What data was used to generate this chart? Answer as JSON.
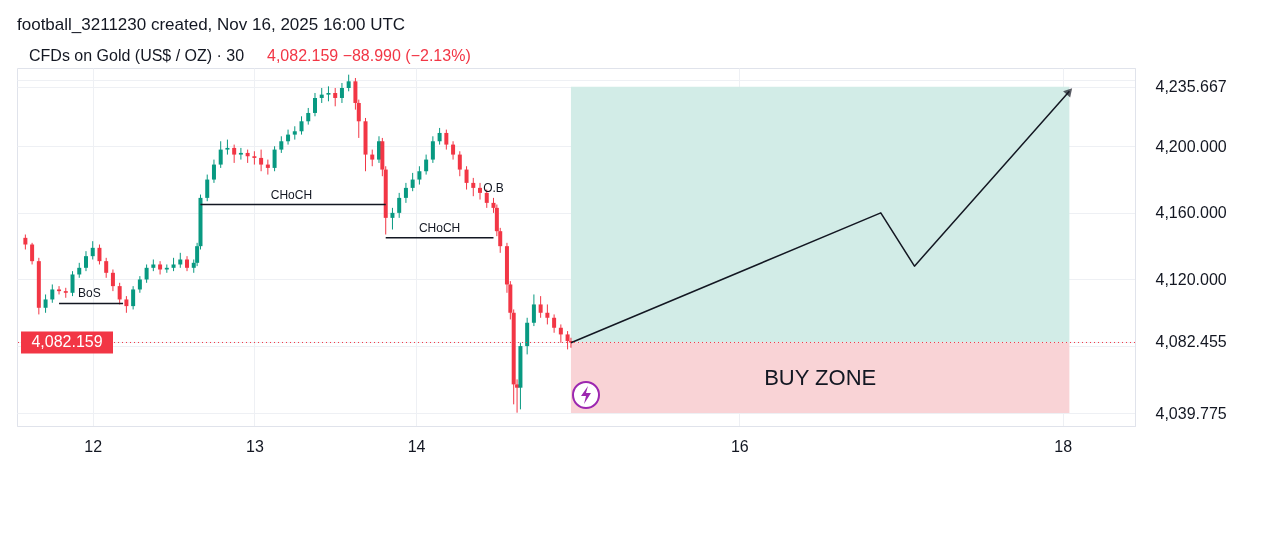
{
  "chart_data": {
    "type": "candlestick",
    "title": "football_3211230 created, Nov 16, 2025 16:00 UTC",
    "subtitle": "CFDs on Gold (US$ / OZ) · 30",
    "annotations": [
      "4,082.159 −88.990 (−2.13%)",
      {
        "text": "BoS",
        "x": "2025-11-11T23:30",
        "y": 4105.6
      },
      {
        "text": "CHoCH",
        "x": "2025-11-13T05:30",
        "y": 4165
      },
      {
        "text": "CHoCH",
        "x": "2025-11-14T03:30",
        "y": 4145
      },
      {
        "text": "O.B",
        "x": "2025-11-14T11:30",
        "y": 4169
      }
    ],
    "x": [
      "2025-11-11T14:00",
      "2025-11-11T15:00",
      "2025-11-11T16:00",
      "2025-11-11T17:00",
      "2025-11-11T18:00",
      "2025-11-11T19:00",
      "2025-11-11T20:00",
      "2025-11-11T21:00",
      "2025-11-11T22:00",
      "2025-11-11T23:00",
      "2025-11-12T00:00",
      "2025-11-12T01:00",
      "2025-11-12T02:00",
      "2025-11-12T03:00",
      "2025-11-12T04:00",
      "2025-11-12T05:00",
      "2025-11-12T06:00",
      "2025-11-12T07:00",
      "2025-11-12T08:00",
      "2025-11-12T09:00",
      "2025-11-12T10:00",
      "2025-11-12T11:00",
      "2025-11-12T12:00",
      "2025-11-12T13:00",
      "2025-11-12T14:00",
      "2025-11-12T15:00",
      "2025-11-12T15:30",
      "2025-11-12T16:00",
      "2025-11-12T17:00",
      "2025-11-12T18:00",
      "2025-11-12T19:00",
      "2025-11-12T20:00",
      "2025-11-12T21:00",
      "2025-11-12T22:00",
      "2025-11-12T23:00",
      "2025-11-13T00:00",
      "2025-11-13T01:00",
      "2025-11-13T02:00",
      "2025-11-13T03:00",
      "2025-11-13T04:00",
      "2025-11-13T05:00",
      "2025-11-13T06:00",
      "2025-11-13T07:00",
      "2025-11-13T08:00",
      "2025-11-13T09:00",
      "2025-11-13T10:00",
      "2025-11-13T11:00",
      "2025-11-13T12:00",
      "2025-11-13T13:00",
      "2025-11-13T14:00",
      "2025-11-13T15:00",
      "2025-11-13T15:30",
      "2025-11-13T16:30",
      "2025-11-13T17:30",
      "2025-11-13T18:30",
      "2025-11-13T19:00",
      "2025-11-13T19:30",
      "2025-11-13T20:30",
      "2025-11-13T21:30",
      "2025-11-13T22:30",
      "2025-11-13T23:30",
      "2025-11-14T00:30",
      "2025-11-14T01:30",
      "2025-11-14T02:30",
      "2025-11-14T03:30",
      "2025-11-14T04:30",
      "2025-11-14T05:30",
      "2025-11-14T06:30",
      "2025-11-14T07:30",
      "2025-11-14T08:30",
      "2025-11-14T09:30",
      "2025-11-14T10:30",
      "2025-11-14T11:30",
      "2025-11-14T12:00",
      "2025-11-14T12:30",
      "2025-11-14T13:30",
      "2025-11-14T14:00",
      "2025-11-14T14:30",
      "2025-11-14T15:00",
      "2025-11-14T15:30",
      "2025-11-14T16:30",
      "2025-11-14T17:30",
      "2025-11-14T18:30",
      "2025-11-14T19:30",
      "2025-11-14T20:30",
      "2025-11-14T21:30",
      "2025-11-14T22:30",
      "2025-11-14T23:00"
    ],
    "ohlc": [
      [
        4145,
        4147,
        4138,
        4141
      ],
      [
        4141,
        4142,
        4129,
        4131
      ],
      [
        4131,
        4133,
        4099,
        4103
      ],
      [
        4103,
        4111,
        4100,
        4108
      ],
      [
        4108,
        4117,
        4106,
        4114
      ],
      [
        4114,
        4116,
        4111,
        4113
      ],
      [
        4113,
        4115,
        4109,
        4112
      ],
      [
        4112,
        4125,
        4110,
        4123
      ],
      [
        4123,
        4130,
        4121,
        4127
      ],
      [
        4127,
        4137,
        4125,
        4134
      ],
      [
        4134,
        4143,
        4132,
        4139
      ],
      [
        4139,
        4141,
        4129,
        4131
      ],
      [
        4131,
        4133,
        4121,
        4124
      ],
      [
        4124,
        4126,
        4113,
        4116
      ],
      [
        4116,
        4118,
        4105,
        4108
      ],
      [
        4108,
        4110,
        4100,
        4104
      ],
      [
        4104,
        4116,
        4102,
        4114
      ],
      [
        4114,
        4122,
        4112,
        4120
      ],
      [
        4120,
        4129,
        4118,
        4127
      ],
      [
        4127,
        4132,
        4125,
        4129
      ],
      [
        4129,
        4131,
        4123,
        4126
      ],
      [
        4126,
        4129,
        4124,
        4127
      ],
      [
        4127,
        4133,
        4125,
        4129
      ],
      [
        4129,
        4136,
        4127,
        4132
      ],
      [
        4132,
        4134,
        4125,
        4127
      ],
      [
        4127,
        4132,
        4124,
        4130
      ],
      [
        4130,
        4142,
        4128,
        4140
      ],
      [
        4140,
        4171,
        4138,
        4169
      ],
      [
        4169,
        4183,
        4167,
        4180
      ],
      [
        4180,
        4192,
        4178,
        4189
      ],
      [
        4189,
        4203,
        4187,
        4198
      ],
      [
        4198,
        4204,
        4195,
        4199
      ],
      [
        4199,
        4201,
        4190,
        4195
      ],
      [
        4195,
        4199,
        4192,
        4196
      ],
      [
        4196,
        4198,
        4190,
        4194
      ],
      [
        4194,
        4197,
        4189,
        4193
      ],
      [
        4193,
        4198,
        4185,
        4189
      ],
      [
        4189,
        4192,
        4183,
        4187
      ],
      [
        4187,
        4200,
        4185,
        4198
      ],
      [
        4198,
        4206,
        4196,
        4203
      ],
      [
        4203,
        4210,
        4201,
        4207
      ],
      [
        4207,
        4212,
        4204,
        4209
      ],
      [
        4209,
        4218,
        4207,
        4215
      ],
      [
        4215,
        4223,
        4213,
        4220
      ],
      [
        4220,
        4232,
        4218,
        4229
      ],
      [
        4229,
        4235,
        4226,
        4231
      ],
      [
        4231,
        4236,
        4227,
        4232
      ],
      [
        4232,
        4235,
        4224,
        4229
      ],
      [
        4229,
        4238,
        4226,
        4235
      ],
      [
        4235,
        4243,
        4233,
        4239
      ],
      [
        4239,
        4241,
        4222,
        4226
      ],
      [
        4226,
        4228,
        4205,
        4215
      ],
      [
        4215,
        4217,
        4185,
        4195
      ],
      [
        4195,
        4198,
        4188,
        4192
      ],
      [
        4192,
        4206,
        4190,
        4203
      ],
      [
        4203,
        4205,
        4182,
        4186
      ],
      [
        4186,
        4188,
        4147,
        4157
      ],
      [
        4157,
        4163,
        4150,
        4160
      ],
      [
        4160,
        4172,
        4157,
        4169
      ],
      [
        4169,
        4178,
        4166,
        4175
      ],
      [
        4175,
        4184,
        4173,
        4180
      ],
      [
        4180,
        4188,
        4177,
        4185
      ],
      [
        4185,
        4195,
        4183,
        4192
      ],
      [
        4192,
        4206,
        4190,
        4203
      ],
      [
        4203,
        4211,
        4201,
        4208
      ],
      [
        4208,
        4210,
        4198,
        4201
      ],
      [
        4201,
        4203,
        4192,
        4195
      ],
      [
        4195,
        4197,
        4182,
        4186
      ],
      [
        4186,
        4188,
        4174,
        4178
      ],
      [
        4178,
        4181,
        4170,
        4175
      ],
      [
        4175,
        4178,
        4168,
        4172
      ],
      [
        4172,
        4174,
        4163,
        4166
      ],
      [
        4166,
        4169,
        4160,
        4163
      ],
      [
        4163,
        4165,
        4146,
        4149
      ],
      [
        4149,
        4151,
        4136,
        4140
      ],
      [
        4140,
        4142,
        4112,
        4117
      ],
      [
        4117,
        4119,
        4096,
        4100
      ],
      [
        4100,
        4102,
        4045,
        4057
      ],
      [
        4057,
        4060,
        4040,
        4055
      ],
      [
        4055,
        4082,
        4042,
        4080
      ],
      [
        4080,
        4097,
        4075,
        4094
      ],
      [
        4094,
        4111,
        4092,
        4105
      ],
      [
        4105,
        4110,
        4097,
        4100
      ],
      [
        4100,
        4105,
        4093,
        4097
      ],
      [
        4097,
        4099,
        4088,
        4091
      ],
      [
        4091,
        4093,
        4082,
        4087
      ],
      [
        4087,
        4089,
        4078,
        4083
      ],
      [
        4083,
        4085,
        4079,
        4082.159
      ]
    ],
    "series": [
      {
        "type": "line",
        "color": "#131722",
        "x": [
          "2025-11-14T23:00",
          "2025-11-16T21:00",
          "2025-11-17T02:00",
          "2025-11-18T01:00"
        ],
        "values": [
          4082,
          4160,
          4128,
          4233
        ]
      },
      {
        "type": "line",
        "color": "#131722",
        "x": [
          "2025-11-11T19:00",
          "2025-11-12T04:30"
        ],
        "values": [
          4105.6,
          4105.6
        ]
      },
      {
        "type": "line",
        "color": "#131722",
        "x": [
          "2025-11-12T16:00",
          "2025-11-13T19:30"
        ],
        "values": [
          4165,
          4165
        ]
      },
      {
        "type": "line",
        "color": "#131722",
        "x": [
          "2025-11-13T19:30",
          "2025-11-14T11:30"
        ],
        "values": [
          4145,
          4145
        ]
      }
    ],
    "bands": [
      {
        "axis": "y",
        "from": 4082.159,
        "to": 4235.667,
        "color": "#d2ece7"
      },
      {
        "axis": "y",
        "from": 4039.775,
        "to": 4082.159,
        "color": "#f9d3d6",
        "label": "BUY ZONE"
      }
    ],
    "ref_lines": [
      {
        "axis": "y",
        "value": 4082.159,
        "label": "4,082.159",
        "color": "#f23645",
        "line_style": "dotted"
      }
    ],
    "xlim": [
      "2025-11-11T13:30",
      "2025-11-18T10:00"
    ],
    "xticks": [
      {
        "value": "2025-11-12",
        "label": "12"
      },
      {
        "value": "2025-11-13",
        "label": "13"
      },
      {
        "value": "2025-11-14",
        "label": "14"
      },
      {
        "value": "2025-11-16",
        "label": "16"
      },
      {
        "value": "2025-11-18",
        "label": "18"
      }
    ],
    "ylim": [
      4032,
      4247
    ],
    "yticks": [
      {
        "value": 4039.775,
        "label": "4,039.775"
      },
      {
        "value": 4040,
        "label": null
      },
      {
        "value": 4080,
        "label": null
      },
      {
        "value": 4082.455,
        "label": "4,082.455"
      },
      {
        "value": 4120,
        "label": "4,120.000"
      },
      {
        "value": 4160,
        "label": "4,160.000"
      },
      {
        "value": 4200,
        "label": "4,200.000"
      },
      {
        "value": 4235.667,
        "label": "4,235.667"
      },
      {
        "value": 4240,
        "label": null
      }
    ],
    "grid": true,
    "marker": "none"
  }
}
